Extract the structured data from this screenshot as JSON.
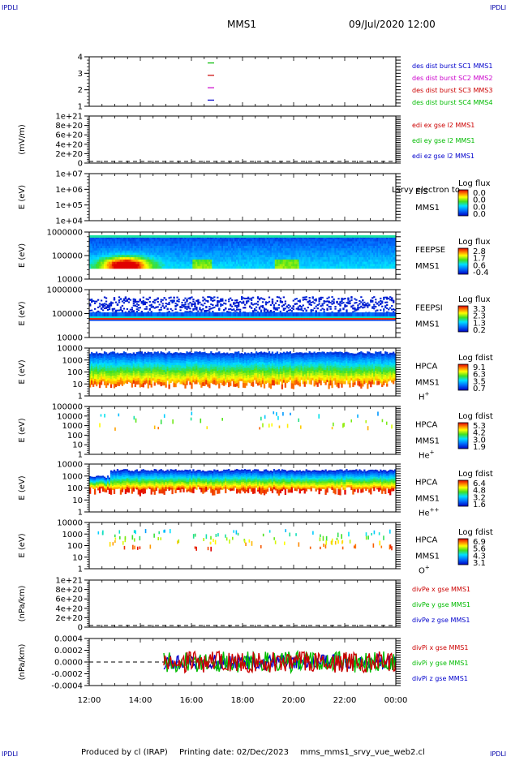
{
  "header": {
    "corner_label": "IPDLI",
    "title": "MMS1",
    "datetime": "09/Jul/2020 12:00"
  },
  "footer": {
    "produced_by": "Produced by cl (IRAP)",
    "printing_date": "Printing date: 02/Dec/2023",
    "script_name": "mms_mms1_srvy_vue_web2.cl"
  },
  "colors": {
    "blue": "#0000cc",
    "magenta": "#cc00cc",
    "red": "#cc0000",
    "green": "#00bb00"
  },
  "chart_data": {
    "type": "timeseries-panels",
    "x_ticks": [
      "12:00",
      "14:00",
      "16:00",
      "18:00",
      "20:00",
      "22:00",
      "00:00"
    ],
    "panels": [
      {
        "id": "burst-availability",
        "type": "line",
        "y_ticks": [
          "1",
          "2",
          "3",
          "4"
        ],
        "ylim": [
          0.5,
          4.5
        ],
        "series": [
          {
            "name": "des dist burst SC1 MMS1",
            "color": "#0000cc",
            "y": 1
          },
          {
            "name": "des dist burst SC2 MMS2",
            "color": "#cc00cc",
            "y": 2
          },
          {
            "name": "des dist burst SC3 MMS3",
            "color": "#cc0000",
            "y": 3
          },
          {
            "name": "des dist burst SC4 MMS4",
            "color": "#00bb00",
            "y": 4
          }
        ]
      },
      {
        "id": "edi-e-field",
        "type": "line",
        "ylabel": "(mV/m)",
        "y_ticks": [
          "0",
          "2e+20",
          "4e+20",
          "6e+20",
          "8e+20",
          "1e+21"
        ],
        "ylim": [
          0,
          1e+21
        ],
        "series": [
          {
            "name": "edi ex gse l2 MMS1",
            "color": "#cc0000"
          },
          {
            "name": "edi ey gse l2 MMS1",
            "color": "#00bb00"
          },
          {
            "name": "edi ez gse l2 MMS1",
            "color": "#0000cc"
          }
        ]
      },
      {
        "id": "eis",
        "type": "heatmap",
        "ylabel": "E (eV)",
        "y_ticks": [
          "1e+04",
          "1e+05",
          "1e+06",
          "1e+07"
        ],
        "scale": "log",
        "instrument": "EIS",
        "overlay_text": "Lsrvy electron to",
        "spacecraft": "MMS1",
        "colorbar_title": "Log flux",
        "colorbar_ticks": [
          "0.0",
          "0.0",
          "0.0",
          "0.0"
        ]
      },
      {
        "id": "feepse",
        "type": "heatmap",
        "ylabel": "E (eV)",
        "y_ticks": [
          "10000",
          "100000",
          "1000000"
        ],
        "scale": "log",
        "instrument": "FEEPSE",
        "spacecraft": "MMS1",
        "colorbar_title": "Log flux",
        "colorbar_ticks": [
          "2.8",
          "1.7",
          "0.6",
          "-0.4"
        ]
      },
      {
        "id": "feepsi",
        "type": "heatmap",
        "ylabel": "E (eV)",
        "y_ticks": [
          "10000",
          "100000",
          "1000000"
        ],
        "scale": "log",
        "instrument": "FEEPSI",
        "spacecraft": "MMS1",
        "colorbar_title": "Log flux",
        "colorbar_ticks": [
          "3.3",
          "2.3",
          "1.3",
          "0.2"
        ]
      },
      {
        "id": "hpca-h",
        "type": "heatmap",
        "ylabel": "E (eV)",
        "y_ticks": [
          "1",
          "10",
          "100",
          "1000",
          "10000"
        ],
        "scale": "log",
        "instrument": "HPCA",
        "spacecraft": "MMS1",
        "species_base": "H",
        "species_charge": "+",
        "colorbar_title": "Log fdist",
        "colorbar_ticks": [
          "9.1",
          "6.3",
          "3.5",
          "0.7"
        ]
      },
      {
        "id": "hpca-he",
        "type": "heatmap",
        "ylabel": "E (eV)",
        "y_ticks": [
          "1",
          "10",
          "100",
          "1000",
          "10000",
          "100000"
        ],
        "scale": "log",
        "instrument": "HPCA",
        "spacecraft": "MMS1",
        "species_base": "He",
        "species_charge": "+",
        "colorbar_title": "Log fdist",
        "colorbar_ticks": [
          "5.3",
          "4.2",
          "3.0",
          "1.9"
        ]
      },
      {
        "id": "hpca-hepp",
        "type": "heatmap",
        "ylabel": "E (eV)",
        "y_ticks": [
          "1",
          "10",
          "100",
          "1000",
          "10000"
        ],
        "scale": "log",
        "instrument": "HPCA",
        "spacecraft": "MMS1",
        "species_base": "He",
        "species_charge": "++",
        "colorbar_title": "Log fdist",
        "colorbar_ticks": [
          "6.4",
          "4.8",
          "3.2",
          "1.6"
        ]
      },
      {
        "id": "hpca-o",
        "type": "heatmap",
        "ylabel": "E (eV)",
        "y_ticks": [
          "1",
          "10",
          "100",
          "1000",
          "10000"
        ],
        "scale": "log",
        "instrument": "HPCA",
        "spacecraft": "MMS1",
        "species_base": "O",
        "species_charge": "+",
        "colorbar_title": "Log fdist",
        "colorbar_ticks": [
          "6.9",
          "5.6",
          "4.3",
          "3.1"
        ]
      },
      {
        "id": "divpe",
        "type": "line",
        "ylabel": "(nPa/km)",
        "y_ticks": [
          "0",
          "2e+20",
          "4e+20",
          "6e+20",
          "8e+20",
          "1e+21"
        ],
        "ylim": [
          0,
          1e+21
        ],
        "series": [
          {
            "name": "divPe x gse MMS1",
            "color": "#cc0000"
          },
          {
            "name": "divPe y gse MMS1",
            "color": "#00bb00"
          },
          {
            "name": "divPe z gse MMS1",
            "color": "#0000cc"
          }
        ]
      },
      {
        "id": "divpi",
        "type": "line",
        "ylabel": "(nPa/km)",
        "y_ticks": [
          "-0.0004",
          "-0.0002",
          "0.0000",
          "0.0002",
          "0.0004"
        ],
        "ylim": [
          -0.0005,
          0.0005
        ],
        "data_start": "14:55",
        "series": [
          {
            "name": "divPi x gse MMS1",
            "color": "#cc0000"
          },
          {
            "name": "divPi y gse MMS1",
            "color": "#00bb00"
          },
          {
            "name": "divPi z gse MMS1",
            "color": "#0000cc"
          }
        ]
      }
    ]
  }
}
